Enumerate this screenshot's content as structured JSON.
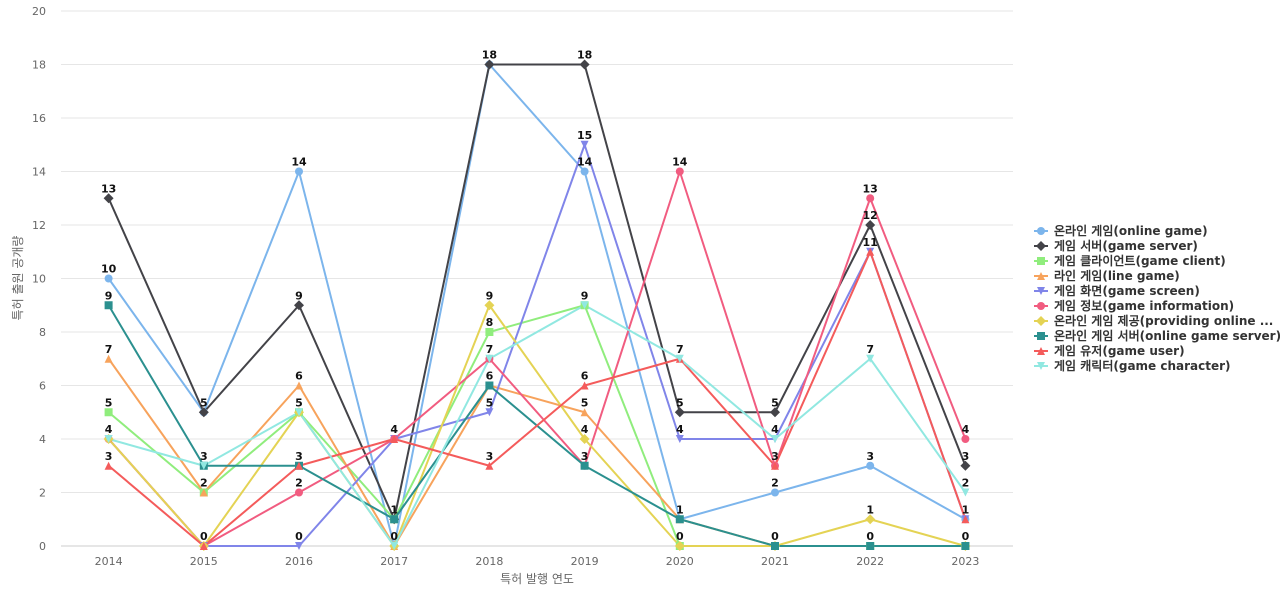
{
  "chart_data": {
    "type": "line",
    "title": "",
    "xlabel": "특허 발행 연도",
    "ylabel": "특허 출원 공개량",
    "ylim": [
      0,
      20
    ],
    "yticks": [
      0,
      2,
      4,
      6,
      8,
      10,
      12,
      14,
      16,
      18,
      20
    ],
    "grid": true,
    "legend_position": "right",
    "categories": [
      "2014",
      "2015",
      "2016",
      "2017",
      "2018",
      "2019",
      "2020",
      "2021",
      "2022",
      "2023"
    ],
    "series": [
      {
        "name": "온라인 게임(online game)",
        "color": "#7cb5ec",
        "marker": "circle",
        "values": [
          10,
          5,
          14,
          0,
          18,
          14,
          1,
          2,
          3,
          1
        ]
      },
      {
        "name": "게임 서버(game server)",
        "color": "#434348",
        "marker": "diamond",
        "values": [
          13,
          5,
          9,
          1,
          18,
          18,
          5,
          5,
          12,
          3
        ]
      },
      {
        "name": "게임 클라이언트(game client)",
        "color": "#90ed7d",
        "marker": "square",
        "values": [
          5,
          2,
          5,
          1,
          8,
          9,
          0,
          0,
          0,
          0
        ]
      },
      {
        "name": "라인 게임(line game)",
        "color": "#f7a35c",
        "marker": "triangle",
        "values": [
          7,
          2,
          6,
          0,
          6,
          5,
          1,
          0,
          0,
          0
        ]
      },
      {
        "name": "게임 화면(game screen)",
        "color": "#8085e9",
        "marker": "triangle-down",
        "values": [
          4,
          0,
          0,
          4,
          5,
          15,
          4,
          4,
          11,
          1
        ]
      },
      {
        "name": "게임 정보(game information)",
        "color": "#f15c80",
        "marker": "circle",
        "values": [
          4,
          0,
          2,
          4,
          7,
          3,
          14,
          3,
          13,
          4
        ]
      },
      {
        "name": "온라인 게임 제공(providing online ...",
        "color": "#e4d354",
        "marker": "diamond",
        "values": [
          4,
          0,
          5,
          0,
          9,
          4,
          0,
          0,
          1,
          0
        ]
      },
      {
        "name": "온라인 게임 서버(online game server)",
        "color": "#2b908f",
        "marker": "square",
        "values": [
          9,
          3,
          3,
          1,
          6,
          3,
          1,
          0,
          0,
          0
        ]
      },
      {
        "name": "게임 유저(game user)",
        "color": "#f45b5b",
        "marker": "triangle",
        "values": [
          3,
          0,
          3,
          4,
          3,
          6,
          7,
          3,
          11,
          1
        ]
      },
      {
        "name": "게임 캐릭터(game character)",
        "color": "#91e8e1",
        "marker": "triangle-down",
        "values": [
          4,
          3,
          5,
          0,
          7,
          9,
          7,
          4,
          7,
          2
        ]
      }
    ],
    "data_labels": [
      {
        "category": "2014",
        "values": [
          13,
          10,
          9,
          7,
          5,
          4,
          3
        ]
      },
      {
        "category": "2015",
        "values": [
          5,
          3,
          2,
          0
        ]
      },
      {
        "category": "2016",
        "values": [
          14,
          9,
          6,
          5,
          3,
          2,
          0
        ]
      },
      {
        "category": "2017",
        "values": [
          4,
          1,
          0
        ]
      },
      {
        "category": "2018",
        "values": [
          18,
          9,
          8,
          7,
          6,
          5,
          3
        ]
      },
      {
        "category": "2019",
        "values": [
          18,
          15,
          14,
          9,
          6,
          5,
          4,
          3
        ]
      },
      {
        "category": "2020",
        "values": [
          14,
          7,
          5,
          4,
          1,
          0
        ]
      },
      {
        "category": "2021",
        "values": [
          5,
          4,
          3,
          2,
          0
        ]
      },
      {
        "category": "2022",
        "values": [
          13,
          12,
          11,
          7,
          3,
          1,
          0
        ]
      },
      {
        "category": "2023",
        "values": [
          4,
          3,
          2,
          1,
          0
        ]
      }
    ]
  }
}
